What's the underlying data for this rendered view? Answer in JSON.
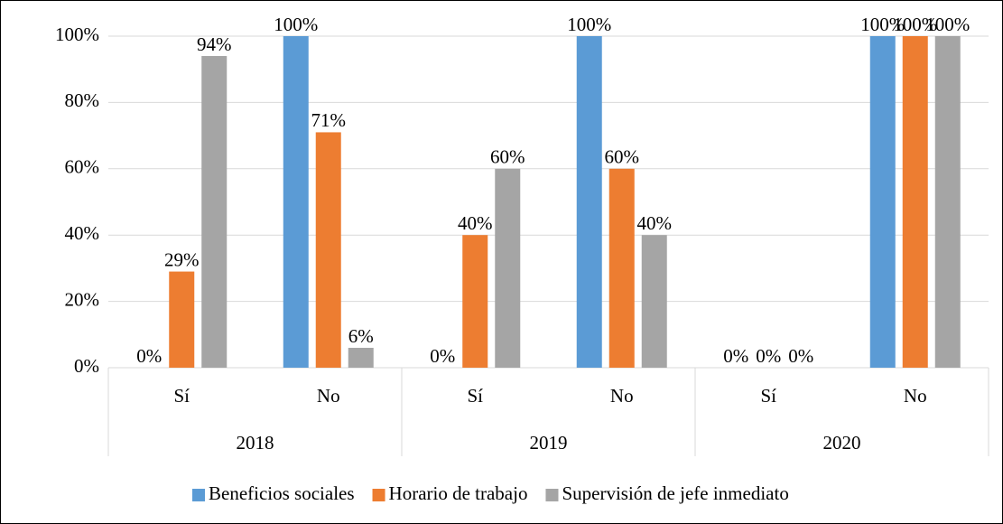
{
  "chart_data": {
    "type": "bar",
    "categories": [
      "Sí",
      "No",
      "Sí",
      "No",
      "Sí",
      "No"
    ],
    "category_groups": [
      "2018",
      "2019",
      "2020"
    ],
    "series": [
      {
        "name": "Beneficios sociales",
        "color": "#5b9bd5",
        "values": [
          0,
          100,
          0,
          100,
          0,
          100
        ],
        "value_labels": [
          "0%",
          "100%",
          "0%",
          "100%",
          "0%",
          "100%"
        ]
      },
      {
        "name": "Horario de trabajo",
        "color": "#ed7d31",
        "values": [
          29,
          71,
          40,
          60,
          0,
          100
        ],
        "value_labels": [
          "29%",
          "71%",
          "40%",
          "60%",
          "0%",
          "100%"
        ]
      },
      {
        "name": "Supervisión de jefe inmediato",
        "color": "#a5a5a5",
        "values": [
          94,
          6,
          60,
          40,
          0,
          100
        ],
        "value_labels": [
          "94%",
          "6%",
          "60%",
          "40%",
          "0%",
          "100%"
        ]
      }
    ],
    "ylim": [
      0,
      100
    ],
    "yticks": [
      {
        "value": 0,
        "label": "0%"
      },
      {
        "value": 20,
        "label": "20%"
      },
      {
        "value": 40,
        "label": "40%"
      },
      {
        "value": 60,
        "label": "60%"
      },
      {
        "value": 80,
        "label": "80%"
      },
      {
        "value": 100,
        "label": "100%"
      }
    ],
    "grid": true,
    "legend": "bottom"
  }
}
